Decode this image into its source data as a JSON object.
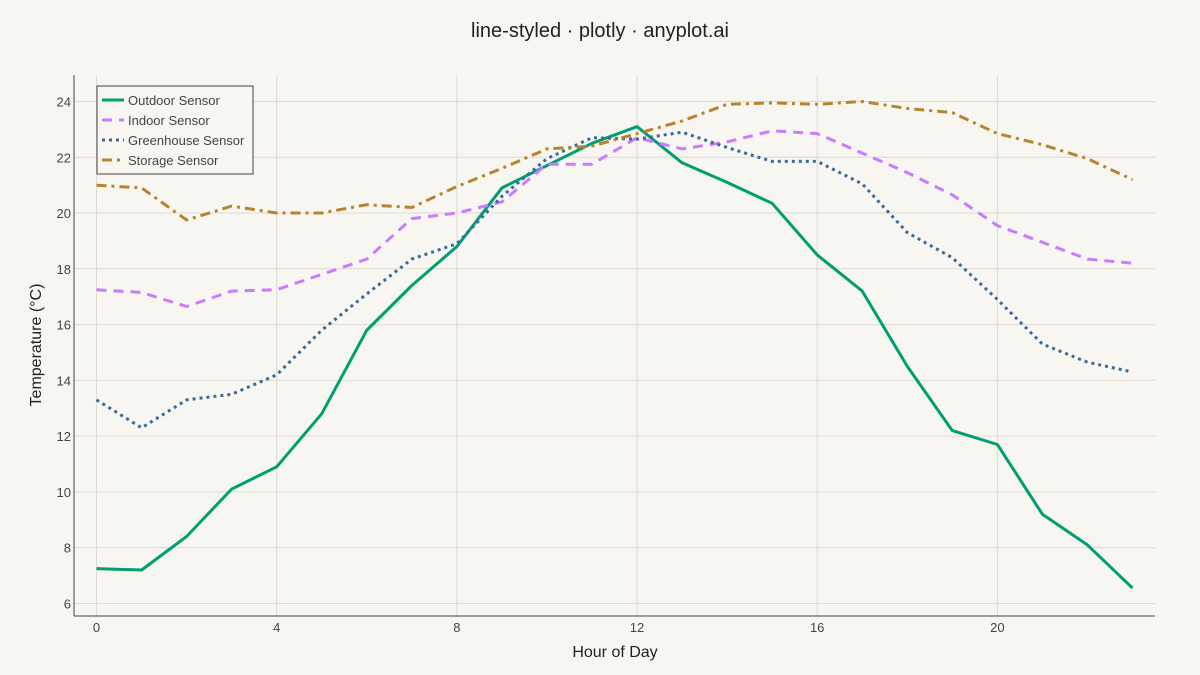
{
  "chart_data": {
    "type": "line",
    "title": "line-styled · plotly · anyplot.ai",
    "xlabel": "Hour of Day",
    "ylabel": "Temperature (°C)",
    "xlim": [
      -0.5,
      23.5
    ],
    "ylim": [
      5.55,
      24.95
    ],
    "xticks": [
      0,
      4,
      8,
      12,
      16,
      20
    ],
    "yticks": [
      6,
      8,
      10,
      12,
      14,
      16,
      18,
      20,
      22,
      24
    ],
    "grid": true,
    "legend_position": "top-left",
    "x": [
      0,
      1,
      2,
      3,
      4,
      5,
      6,
      7,
      8,
      9,
      10,
      11,
      12,
      13,
      14,
      15,
      16,
      17,
      18,
      19,
      20,
      21,
      22,
      23
    ],
    "series": [
      {
        "name": "Outdoor Sensor",
        "color": "#009e73",
        "dash": "solid",
        "values": [
          7.25,
          7.2,
          8.4,
          10.1,
          10.9,
          12.8,
          15.8,
          17.4,
          18.8,
          20.9,
          21.7,
          22.5,
          23.1,
          21.8,
          21.1,
          20.35,
          18.5,
          17.2,
          14.5,
          12.2,
          11.7,
          9.2,
          8.1,
          6.55
        ]
      },
      {
        "name": "Indoor Sensor",
        "color": "#c77dff",
        "dash": "dash",
        "values": [
          17.25,
          17.15,
          16.65,
          17.2,
          17.25,
          17.8,
          18.35,
          19.8,
          20.0,
          20.4,
          21.75,
          21.75,
          22.7,
          22.3,
          22.55,
          22.95,
          22.85,
          22.15,
          21.45,
          20.65,
          19.55,
          18.95,
          18.35,
          18.2
        ]
      },
      {
        "name": "Greenhouse Sensor",
        "color": "#3a6a9c",
        "dash": "dot",
        "values": [
          13.3,
          12.3,
          13.3,
          13.5,
          14.2,
          15.8,
          17.1,
          18.35,
          18.9,
          20.6,
          21.95,
          22.7,
          22.65,
          22.9,
          22.35,
          21.85,
          21.85,
          21.05,
          19.3,
          18.4,
          16.9,
          15.3,
          14.65,
          14.3
        ]
      },
      {
        "name": "Storage Sensor",
        "color": "#b8832e",
        "dash": "dashdot",
        "values": [
          21.0,
          20.9,
          19.75,
          20.25,
          20.0,
          20.0,
          20.3,
          20.2,
          20.95,
          21.6,
          22.3,
          22.4,
          22.85,
          23.3,
          23.9,
          23.95,
          23.9,
          24.0,
          23.75,
          23.6,
          22.85,
          22.45,
          21.95,
          21.2
        ]
      }
    ]
  }
}
